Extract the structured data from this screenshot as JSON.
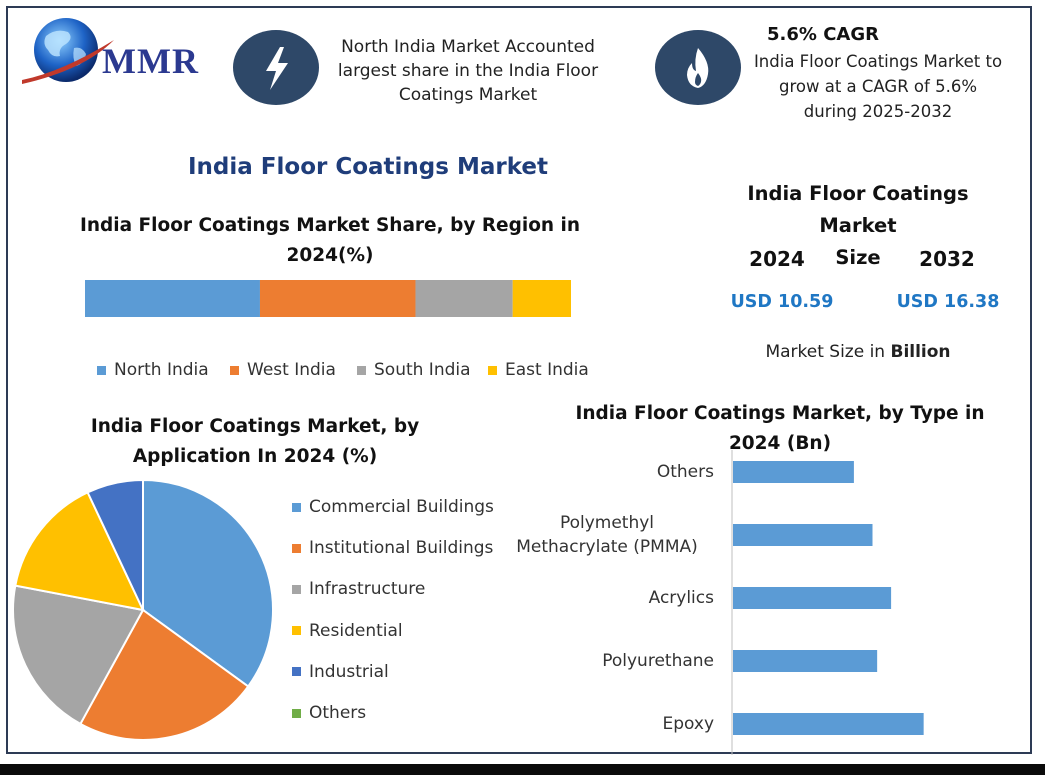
{
  "logo": {
    "text": "MMR"
  },
  "highlights": {
    "region": {
      "icon": "lightning-bolt-icon",
      "text": [
        "North India Market Accounted",
        "largest share in the India Floor",
        "Coatings Market"
      ]
    },
    "cagr": {
      "icon": "flame-icon",
      "title": "5.6% CAGR",
      "text": [
        "India Floor Coatings Market to",
        "grow at a CAGR of 5.6%",
        "during 2025-2032"
      ]
    }
  },
  "main_title": "India Floor Coatings Market",
  "market_size": {
    "title_lines": [
      "India Floor Coatings Market",
      "Size"
    ],
    "years": [
      "2024",
      "2032"
    ],
    "values": [
      "USD 10.59",
      "USD 16.38"
    ],
    "note_prefix": "Market Size in ",
    "note_bold": "Billion"
  },
  "colors": {
    "blue": "#5b9bd5",
    "orange": "#ed7d31",
    "gray": "#a5a5a5",
    "yellow": "#ffc000",
    "darkblue": "#4472c4",
    "green": "#70ad47",
    "value_blue": "#1f77c4",
    "title_blue": "#1f3d7a"
  },
  "chart_data": [
    {
      "type": "bar",
      "orientation": "stacked-horizontal",
      "title_lines": [
        "India Floor Coatings Market Share, by Region in",
        "2024(%)"
      ],
      "series": [
        {
          "name": "North India",
          "values": [
            36
          ]
        },
        {
          "name": "West India",
          "values": [
            32
          ]
        },
        {
          "name": "South India",
          "values": [
            20
          ]
        },
        {
          "name": "East India",
          "values": [
            12
          ]
        }
      ],
      "legend": "bottom"
    },
    {
      "type": "pie",
      "title_lines": [
        "India Floor Coatings Market, by",
        "Application In 2024 (%)"
      ],
      "categories": [
        "Commercial Buildings",
        "Institutional Buildings",
        "Infrastructure",
        "Residential",
        "Industrial",
        "Others"
      ],
      "values": [
        35,
        23,
        20,
        15,
        7,
        0
      ],
      "legend": "right"
    },
    {
      "type": "bar",
      "orientation": "horizontal",
      "title_lines": [
        "India Floor Coatings Market, by Type in",
        "2024 (Bn)"
      ],
      "categories": [
        "Others",
        "Polymethyl Methacrylate (PMMA)",
        "Acrylics",
        "Polyurethane",
        "Epoxy"
      ],
      "category_lines": [
        [
          "Others"
        ],
        [
          "Polymethyl",
          "Methacrylate (PMMA)"
        ],
        [
          "Acrylics"
        ],
        [
          "Polyurethane"
        ],
        [
          "Epoxy"
        ]
      ],
      "values": [
        1.3,
        1.5,
        1.7,
        1.55,
        2.05
      ],
      "xlim": [
        0,
        3.3
      ]
    }
  ]
}
